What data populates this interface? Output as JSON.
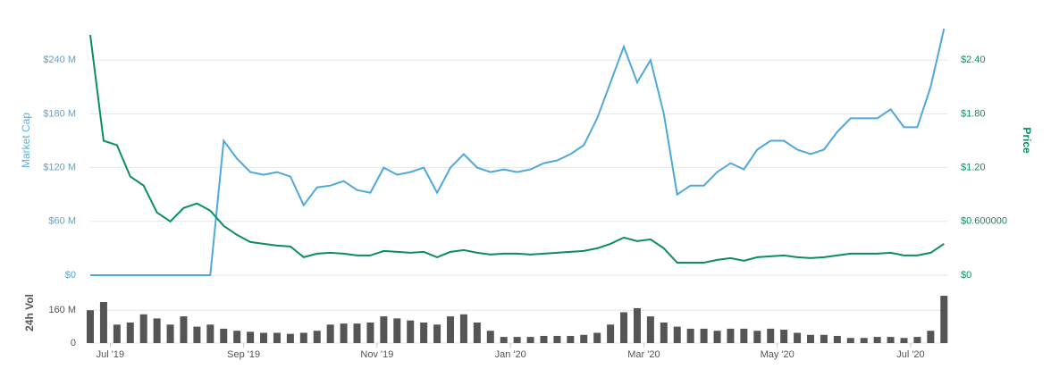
{
  "chart_data": [
    {
      "type": "line",
      "y_label": "Market Cap",
      "y2_label": "Price",
      "x": [
        5.7,
        5.9,
        6.1,
        6.3,
        6.5,
        6.7,
        6.9,
        7.1,
        7.3,
        7.5,
        7.7,
        7.9,
        8.1,
        8.3,
        8.5,
        8.7,
        8.9,
        9.1,
        9.3,
        9.5,
        9.7,
        9.9,
        10.1,
        10.3,
        10.5,
        10.7,
        10.9,
        11.1,
        11.3,
        11.5,
        11.7,
        11.9,
        12.1,
        12.3,
        12.5,
        12.7,
        12.9,
        13.1,
        13.3,
        13.5,
        13.7,
        13.9,
        14.1,
        14.3,
        14.5,
        14.7,
        14.9,
        15.1,
        15.3,
        15.5,
        15.7,
        15.9,
        16.1,
        16.3,
        16.5,
        16.7,
        16.9,
        17.1,
        17.3,
        17.5,
        17.7,
        17.9,
        18.1,
        18.3,
        18.5
      ],
      "xlim": [
        5.7,
        18.55
      ],
      "ylim": [
        0,
        300
      ],
      "yticks": [
        {
          "value": 0,
          "label": "$0"
        },
        {
          "value": 60,
          "label": "$60 M"
        },
        {
          "value": 120,
          "label": "$120 M"
        },
        {
          "value": 180,
          "label": "$180 M"
        },
        {
          "value": 240,
          "label": "$240 M"
        }
      ],
      "y2lim": [
        0,
        3
      ],
      "y2ticks": [
        {
          "value": 0,
          "label": "$0"
        },
        {
          "value": 0.6,
          "label": "$0.600000"
        },
        {
          "value": 1.2,
          "label": "$1.20"
        },
        {
          "value": 1.8,
          "label": "$1.80"
        },
        {
          "value": 2.4,
          "label": "$2.40"
        }
      ],
      "grid": true,
      "series": [
        {
          "name": "Market Cap",
          "color": "#4fa8dc",
          "values": [
            0,
            0,
            0,
            0,
            0,
            0,
            0,
            0,
            0,
            0,
            150,
            130,
            115,
            112,
            115,
            110,
            78,
            98,
            100,
            105,
            95,
            92,
            120,
            112,
            115,
            120,
            92,
            120,
            135,
            120,
            115,
            118,
            115,
            118,
            125,
            128,
            135,
            145,
            175,
            215,
            255,
            215,
            240,
            180,
            90,
            100,
            100,
            115,
            125,
            118,
            140,
            150,
            150,
            140,
            135,
            140,
            160,
            175,
            175,
            175,
            185,
            165,
            165,
            210,
            275
          ]
        },
        {
          "name": "Price",
          "color": "#0a8f5c",
          "axis": "y2",
          "values": [
            2.68,
            1.5,
            1.45,
            1.1,
            1.0,
            0.7,
            0.6,
            0.75,
            0.8,
            0.72,
            0.55,
            0.45,
            0.37,
            0.35,
            0.33,
            0.32,
            0.2,
            0.24,
            0.25,
            0.24,
            0.22,
            0.22,
            0.27,
            0.26,
            0.25,
            0.26,
            0.2,
            0.26,
            0.28,
            0.25,
            0.23,
            0.24,
            0.24,
            0.23,
            0.24,
            0.25,
            0.26,
            0.27,
            0.3,
            0.35,
            0.42,
            0.38,
            0.4,
            0.3,
            0.14,
            0.14,
            0.14,
            0.17,
            0.19,
            0.16,
            0.2,
            0.21,
            0.22,
            0.2,
            0.19,
            0.2,
            0.22,
            0.24,
            0.24,
            0.24,
            0.25,
            0.22,
            0.22,
            0.25,
            0.35
          ]
        }
      ]
    },
    {
      "type": "bar",
      "y_label": "24h Vol",
      "x": [
        5.7,
        5.9,
        6.1,
        6.3,
        6.5,
        6.7,
        6.9,
        7.1,
        7.3,
        7.5,
        7.7,
        7.9,
        8.1,
        8.3,
        8.5,
        8.7,
        8.9,
        9.1,
        9.3,
        9.5,
        9.7,
        9.9,
        10.1,
        10.3,
        10.5,
        10.7,
        10.9,
        11.1,
        11.3,
        11.5,
        11.7,
        11.9,
        12.1,
        12.3,
        12.5,
        12.7,
        12.9,
        13.1,
        13.3,
        13.5,
        13.7,
        13.9,
        14.1,
        14.3,
        14.5,
        14.7,
        14.9,
        15.1,
        15.3,
        15.5,
        15.7,
        15.9,
        16.1,
        16.3,
        16.5,
        16.7,
        16.9,
        17.1,
        17.3,
        17.5,
        17.7,
        17.9,
        18.1,
        18.3,
        18.5
      ],
      "xlim": [
        5.7,
        18.55
      ],
      "xticks": [
        {
          "value": 6,
          "label": "Jul '19"
        },
        {
          "value": 8,
          "label": "Sep '19"
        },
        {
          "value": 10,
          "label": "Nov '19"
        },
        {
          "value": 12,
          "label": "Jan '20"
        },
        {
          "value": 14,
          "label": "Mar '20"
        },
        {
          "value": 16,
          "label": "May '20"
        },
        {
          "value": 18,
          "label": "Jul '20"
        }
      ],
      "ylim": [
        0,
        300
      ],
      "yticks": [
        0,
        {
          "value": 160,
          "label": "160 M"
        }
      ],
      "grid": true,
      "color": "#555555",
      "values": [
        160,
        200,
        90,
        100,
        140,
        120,
        90,
        130,
        80,
        90,
        70,
        60,
        55,
        50,
        50,
        45,
        50,
        60,
        90,
        95,
        95,
        100,
        130,
        120,
        110,
        100,
        90,
        130,
        140,
        100,
        60,
        30,
        30,
        30,
        35,
        35,
        35,
        40,
        50,
        90,
        150,
        170,
        130,
        100,
        80,
        70,
        70,
        60,
        70,
        70,
        60,
        70,
        65,
        50,
        40,
        40,
        35,
        25,
        25,
        30,
        30,
        25,
        30,
        60,
        230
      ]
    }
  ]
}
